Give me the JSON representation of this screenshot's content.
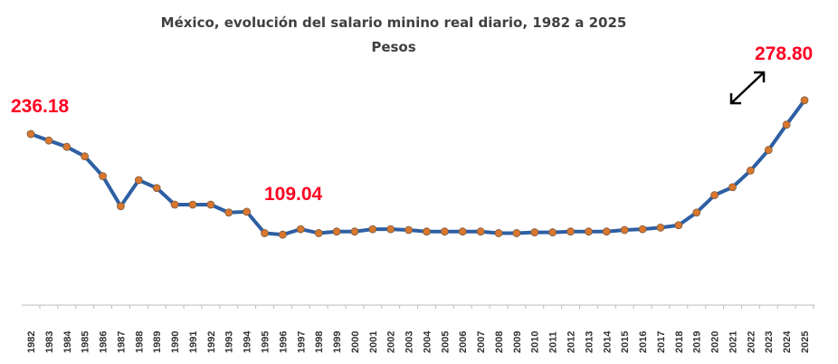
{
  "chart_data": {
    "type": "line",
    "title": "México, evolución del salario minino real diario, 1982 a 2025",
    "subtitle": "Pesos",
    "xlabel": "",
    "ylabel": "",
    "ylim": [
      20,
      290
    ],
    "grid": false,
    "y_axis_visible": false,
    "x": [
      "1982",
      "1983",
      "1984",
      "1985",
      "1986",
      "1987",
      "1988",
      "1989",
      "1990",
      "1991",
      "1992",
      "1993",
      "1994",
      "1995",
      "1996",
      "1997",
      "1998",
      "1999",
      "2000",
      "2001",
      "2002",
      "2003",
      "2004",
      "2005",
      "2006",
      "2007",
      "2008",
      "2009",
      "2010",
      "2011",
      "2012",
      "2013",
      "2014",
      "2015",
      "2016",
      "2017",
      "2018",
      "2019",
      "2020",
      "2021",
      "2022",
      "2023",
      "2024",
      "2025"
    ],
    "series": [
      {
        "values": [
          236.18,
          228,
          220,
          208,
          183,
          145,
          178,
          168,
          147,
          147,
          147,
          137,
          138,
          111,
          109.04,
          116,
          111,
          113,
          113,
          116,
          116,
          115,
          113,
          113,
          113,
          113,
          111,
          111,
          112,
          112,
          113,
          113,
          113,
          115,
          116,
          118,
          121,
          137,
          159,
          169,
          190,
          216,
          248,
          278.8
        ],
        "line_color": "#2e5fa3",
        "marker_color": "#d9772e"
      }
    ],
    "annotations": [
      {
        "text": "236.18",
        "year": "1982"
      },
      {
        "text": "109.04",
        "year": "1996"
      },
      {
        "text": "278.80",
        "year": "2025"
      }
    ],
    "annotation_color": "#ff0022"
  },
  "icons": {
    "expand": "diagonal-double-arrow-icon"
  }
}
